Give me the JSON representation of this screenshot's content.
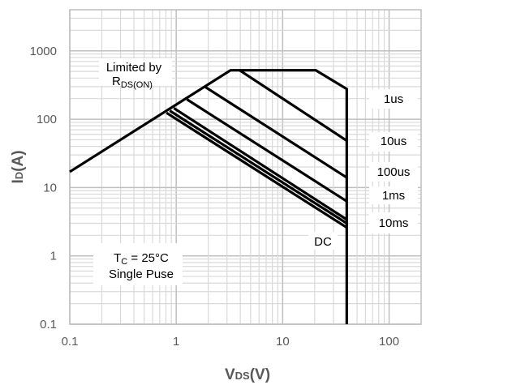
{
  "chart_data": {
    "type": "line",
    "title": "",
    "xlabel": "V",
    "xlabel_sub": "DS",
    "xlabel_unit": "(V)",
    "ylabel": "I",
    "ylabel_sub": "D",
    "ylabel_unit": "(A)",
    "x_scale": "log",
    "y_scale": "log",
    "xlim": [
      0.1,
      200
    ],
    "ylim": [
      0.1,
      4000
    ],
    "grid": true,
    "x_ticks": [
      "0.1",
      "1",
      "10",
      "100"
    ],
    "y_ticks": [
      "0.1",
      "1",
      "10",
      "100",
      "1000"
    ],
    "series": [
      {
        "name": "Limited by R_DS(ON) / boundary",
        "points": [
          [
            0.1,
            17
          ],
          [
            3.24,
            520
          ],
          [
            20.5,
            520
          ],
          [
            40,
            277
          ],
          [
            40,
            0.1
          ]
        ]
      },
      {
        "name": "1us",
        "points": [
          [
            3.94,
            520
          ],
          [
            40,
            48.5
          ]
        ]
      },
      {
        "name": "10us",
        "points": [
          [
            1.88,
            295
          ],
          [
            40,
            14
          ]
        ]
      },
      {
        "name": "100us",
        "points": [
          [
            1.26,
            195
          ],
          [
            40,
            6.3
          ]
        ]
      },
      {
        "name": "1ms",
        "points": [
          [
            0.95,
            145
          ],
          [
            40,
            3.4
          ]
        ]
      },
      {
        "name": "10ms",
        "points": [
          [
            0.87,
            133
          ],
          [
            40,
            3.0
          ]
        ]
      },
      {
        "name": "DC",
        "points": [
          [
            0.81,
            124
          ],
          [
            40,
            2.6
          ]
        ]
      }
    ],
    "annotations": {
      "limited_by": "Limited by",
      "rds_r": "R",
      "rds_sub": "DS(ON)",
      "tc_t": "T",
      "tc_sub": "C",
      "tc_value": " = 25°C",
      "pulse": "Single Puse",
      "labels": [
        "1us",
        "10us",
        "100us",
        "1ms",
        "10ms",
        "DC"
      ]
    },
    "colors": {
      "line": "#000000",
      "grid_major": "#bfbfbf",
      "grid_minor": "#d9d9d9",
      "tick_text": "#595959"
    }
  }
}
